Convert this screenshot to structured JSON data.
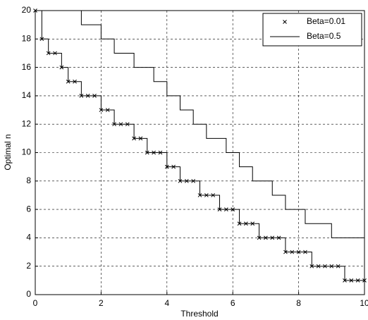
{
  "chart_data": {
    "type": "stairs",
    "xlabel": "Threshold",
    "ylabel": "Optimal n",
    "xlim": [
      0,
      10
    ],
    "ylim": [
      0,
      20
    ],
    "xticks": [
      0,
      2,
      4,
      6,
      8,
      10
    ],
    "yticks": [
      0,
      2,
      4,
      6,
      8,
      10,
      12,
      14,
      16,
      18,
      20
    ],
    "grid": true,
    "legend": "top-right",
    "series": [
      {
        "name": "Beta=0.01",
        "color": "#000000",
        "marker": "x",
        "x": [
          0,
          0.2,
          0.4,
          0.6,
          0.8,
          1.0,
          1.2,
          1.4,
          1.6,
          1.8,
          2.0,
          2.2,
          2.4,
          2.6,
          2.8,
          3.0,
          3.2,
          3.4,
          3.6,
          3.8,
          4.0,
          4.2,
          4.4,
          4.6,
          4.8,
          5.0,
          5.2,
          5.4,
          5.6,
          5.8,
          6.0,
          6.2,
          6.4,
          6.6,
          6.8,
          7.0,
          7.2,
          7.4,
          7.6,
          7.8,
          8.0,
          8.2,
          8.4,
          8.6,
          8.8,
          9.0,
          9.2,
          9.4,
          9.6,
          9.8,
          10
        ],
        "values": [
          20,
          18,
          17,
          17,
          16,
          15,
          15,
          14,
          14,
          14,
          13,
          13,
          12,
          12,
          12,
          11,
          11,
          10,
          10,
          10,
          9,
          9,
          8,
          8,
          8,
          7,
          7,
          7,
          6,
          6,
          6,
          5,
          5,
          5,
          4,
          4,
          4,
          4,
          3,
          3,
          3,
          3,
          2,
          2,
          2,
          2,
          2,
          1,
          1,
          1,
          1
        ]
      },
      {
        "name": "Beta=0.5",
        "color": "#000000",
        "marker": "none",
        "x": [
          0,
          1.4,
          2.0,
          2.4,
          3.0,
          3.6,
          4.0,
          4.4,
          4.8,
          5.2,
          5.8,
          6.2,
          6.6,
          7.2,
          7.6,
          8.2,
          9.0,
          10
        ],
        "values": [
          20,
          19,
          18,
          17,
          16,
          15,
          14,
          13,
          12,
          11,
          10,
          9,
          8,
          7,
          6,
          5,
          4,
          4
        ]
      }
    ]
  }
}
